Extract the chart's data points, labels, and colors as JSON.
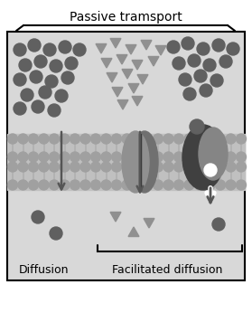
{
  "title": "Passive tramsport",
  "label_diffusion": "Diffusion",
  "label_facilitated": "Facilitated diffusion",
  "bg_color": "#d8d8d8",
  "outer_bg": "#e0e0e0",
  "membrane_bg": "#c8c8c8",
  "arrow_color": "#555555",
  "sphere_color": "#606060",
  "sphere_outline": "#444444",
  "triangle_color": "#909090",
  "channel_left_color": "#808080",
  "channel_right_color": "#a0a0a0",
  "carrier_body_color": "#505050",
  "carrier_light_color": "#909090",
  "head_color": "#a0a0a0",
  "tail_color": "#b8b8b8",
  "fig_width": 2.79,
  "fig_height": 3.56,
  "dpi": 100
}
